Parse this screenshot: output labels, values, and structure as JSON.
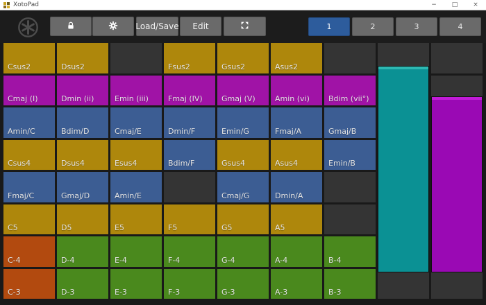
{
  "window": {
    "title": "XotoPad",
    "controls": {
      "minimize": "−",
      "maximize": "□",
      "close": "×"
    }
  },
  "toolbar": {
    "load_save_label": "Load/Save",
    "edit_label": "Edit",
    "tabs": [
      {
        "label": "1",
        "active": true
      },
      {
        "label": "2",
        "active": false
      },
      {
        "label": "3",
        "active": false
      },
      {
        "label": "4",
        "active": false
      }
    ]
  },
  "palette": {
    "gold": "#ae870c",
    "magenta": "#a013a6",
    "blue": "#3c5d93",
    "green": "#4a891d",
    "orange": "#b24a0f",
    "empty": "#343434",
    "teal_strip": "#0b9194",
    "teal_strip_cap": "#2db8b2",
    "purple_strip": "#9a09b4",
    "purple_strip_cap": "#c21bd8",
    "tab_active": "#2d5c9c",
    "button_gray": "#6a6a6a"
  },
  "pad_grid": {
    "rows": [
      [
        {
          "label": "Csus2",
          "color": "gold"
        },
        {
          "label": "Dsus2",
          "color": "gold"
        },
        {
          "label": "",
          "color": "empty"
        },
        {
          "label": "Fsus2",
          "color": "gold"
        },
        {
          "label": "Gsus2",
          "color": "gold"
        },
        {
          "label": "Asus2",
          "color": "gold"
        },
        {
          "label": "",
          "color": "empty"
        },
        {
          "label": "",
          "color": "empty"
        },
        {
          "label": "",
          "color": "empty"
        }
      ],
      [
        {
          "label": "Cmaj (I)",
          "color": "magenta"
        },
        {
          "label": "Dmin (ii)",
          "color": "magenta"
        },
        {
          "label": "Emin (iii)",
          "color": "magenta"
        },
        {
          "label": "Fmaj (IV)",
          "color": "magenta"
        },
        {
          "label": "Gmaj (V)",
          "color": "magenta"
        },
        {
          "label": "Amin (vi)",
          "color": "magenta"
        },
        {
          "label": "Bdim (vii°)",
          "color": "magenta"
        },
        {
          "label": "",
          "color": "empty"
        },
        {
          "label": "",
          "color": "empty"
        }
      ],
      [
        {
          "label": "Amin/C",
          "color": "blue"
        },
        {
          "label": "Bdim/D",
          "color": "blue"
        },
        {
          "label": "Cmaj/E",
          "color": "blue"
        },
        {
          "label": "Dmin/F",
          "color": "blue"
        },
        {
          "label": "Emin/G",
          "color": "blue"
        },
        {
          "label": "Fmaj/A",
          "color": "blue"
        },
        {
          "label": "Gmaj/B",
          "color": "blue"
        },
        {
          "label": "",
          "color": "empty"
        },
        {
          "label": "",
          "color": "empty"
        }
      ],
      [
        {
          "label": "Csus4",
          "color": "gold"
        },
        {
          "label": "Dsus4",
          "color": "gold"
        },
        {
          "label": "Esus4",
          "color": "gold"
        },
        {
          "label": "Bdim/F",
          "color": "blue"
        },
        {
          "label": "Gsus4",
          "color": "gold"
        },
        {
          "label": "Asus4",
          "color": "gold"
        },
        {
          "label": "Emin/B",
          "color": "blue"
        },
        {
          "label": "",
          "color": "empty"
        },
        {
          "label": "",
          "color": "empty"
        }
      ],
      [
        {
          "label": "Fmaj/C",
          "color": "blue"
        },
        {
          "label": "Gmaj/D",
          "color": "blue"
        },
        {
          "label": "Amin/E",
          "color": "blue"
        },
        {
          "label": "",
          "color": "empty"
        },
        {
          "label": "Cmaj/G",
          "color": "blue"
        },
        {
          "label": "Dmin/A",
          "color": "blue"
        },
        {
          "label": "",
          "color": "empty"
        },
        {
          "label": "",
          "color": "empty"
        },
        {
          "label": "",
          "color": "empty"
        }
      ],
      [
        {
          "label": "C5",
          "color": "gold"
        },
        {
          "label": "D5",
          "color": "gold"
        },
        {
          "label": "E5",
          "color": "gold"
        },
        {
          "label": "F5",
          "color": "gold"
        },
        {
          "label": "G5",
          "color": "gold"
        },
        {
          "label": "A5",
          "color": "gold"
        },
        {
          "label": "",
          "color": "empty"
        },
        {
          "label": "",
          "color": "empty"
        },
        {
          "label": "",
          "color": "empty"
        }
      ],
      [
        {
          "label": "C-4",
          "color": "orange"
        },
        {
          "label": "D-4",
          "color": "green"
        },
        {
          "label": "E-4",
          "color": "green"
        },
        {
          "label": "F-4",
          "color": "green"
        },
        {
          "label": "G-4",
          "color": "green"
        },
        {
          "label": "A-4",
          "color": "green"
        },
        {
          "label": "B-4",
          "color": "green"
        },
        {
          "label": "",
          "color": "empty"
        },
        {
          "label": "",
          "color": "empty"
        }
      ],
      [
        {
          "label": "C-3",
          "color": "orange"
        },
        {
          "label": "D-3",
          "color": "green"
        },
        {
          "label": "E-3",
          "color": "green"
        },
        {
          "label": "F-3",
          "color": "green"
        },
        {
          "label": "G-3",
          "color": "green"
        },
        {
          "label": "A-3",
          "color": "green"
        },
        {
          "label": "B-3",
          "color": "green"
        },
        {
          "label": "",
          "color": "empty"
        },
        {
          "label": "",
          "color": "empty"
        }
      ]
    ]
  },
  "strips": [
    {
      "name": "touch-strip-left",
      "color_key": "teal_strip",
      "cap_key": "teal_strip_cap"
    },
    {
      "name": "touch-strip-right",
      "color_key": "purple_strip",
      "cap_key": "purple_strip_cap"
    }
  ]
}
